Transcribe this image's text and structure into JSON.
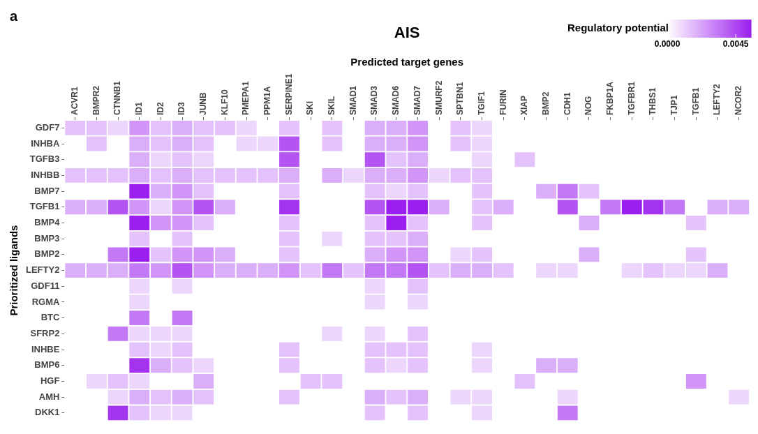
{
  "chart_data": {
    "type": "heatmap",
    "title": "AIS",
    "xlabel": "Predicted target genes",
    "ylabel": "Prioritized ligands",
    "legend_title": "Regulatory potential",
    "annotations": [
      "a"
    ],
    "categories": [
      "ACVR1",
      "BMPR2",
      "CTNNB1",
      "ID1",
      "ID2",
      "ID3",
      "JUNB",
      "KLF10",
      "PMEPA1",
      "PPM1A",
      "SERPINE1",
      "SKI",
      "SKIL",
      "SMAD1",
      "SMAD3",
      "SMAD6",
      "SMAD7",
      "SMURF2",
      "SPTBN1",
      "TGIF1",
      "FURIN",
      "XIAP",
      "BMP2",
      "CDH1",
      "NOG",
      "FKBP1A",
      "TGFBR1",
      "THBS1",
      "TJP1",
      "TGFB1",
      "LEFTY2",
      "NCOR2"
    ],
    "y_categories": [
      "GDF7",
      "INHBA",
      "TGFB3",
      "INHBB",
      "BMP7",
      "TGFB1",
      "BMP4",
      "BMP3",
      "BMP2",
      "LEFTY2",
      "GDF11",
      "RGMA",
      "BTC",
      "SFRP2",
      "INHBE",
      "BMP6",
      "HGF",
      "AMH",
      "DKK1"
    ],
    "clim": [
      0,
      0.0055
    ],
    "cticks": [
      {
        "value": 0,
        "label": "0.0000"
      },
      {
        "value": 0.0045,
        "label": "0.0045"
      }
    ],
    "cells": [
      [
        0.0015,
        0.0015,
        0.001,
        0.0026,
        0.0015,
        0.002,
        0.0015,
        0.0015,
        0.001,
        null,
        0.0015,
        null,
        0.0015,
        null,
        0.002,
        0.002,
        0.0026,
        null,
        0.0015,
        0.001,
        null,
        null,
        null,
        null,
        null,
        null,
        null,
        null,
        null,
        null,
        null,
        null
      ],
      [
        null,
        0.0015,
        null,
        0.002,
        0.0015,
        0.002,
        0.0015,
        null,
        0.001,
        0.001,
        0.0042,
        null,
        0.0015,
        null,
        0.002,
        0.002,
        0.0026,
        null,
        0.0015,
        0.001,
        null,
        null,
        null,
        null,
        null,
        null,
        null,
        null,
        null,
        null,
        null,
        null
      ],
      [
        null,
        null,
        null,
        0.002,
        0.001,
        0.0015,
        0.001,
        null,
        null,
        null,
        0.0042,
        null,
        null,
        null,
        0.0042,
        0.0015,
        0.002,
        null,
        null,
        0.001,
        null,
        0.0015,
        null,
        null,
        null,
        null,
        null,
        null,
        null,
        null,
        null,
        null
      ],
      [
        0.0015,
        0.0015,
        0.0015,
        0.002,
        0.0015,
        0.002,
        0.0015,
        0.0015,
        0.0015,
        0.0015,
        0.002,
        null,
        0.002,
        0.001,
        0.002,
        0.002,
        0.0026,
        0.001,
        0.0015,
        0.0015,
        null,
        null,
        null,
        null,
        null,
        null,
        null,
        null,
        null,
        null,
        null,
        null
      ],
      [
        null,
        null,
        null,
        0.0055,
        0.002,
        0.0026,
        0.0015,
        null,
        null,
        null,
        0.0015,
        null,
        null,
        null,
        0.0015,
        0.001,
        0.0015,
        null,
        null,
        0.0015,
        null,
        null,
        0.002,
        0.0033,
        0.0015,
        null,
        null,
        null,
        null,
        null,
        null,
        null
      ],
      [
        0.002,
        0.002,
        0.0042,
        0.0026,
        0.001,
        0.0026,
        0.0042,
        0.002,
        null,
        null,
        0.005,
        null,
        null,
        null,
        0.0042,
        0.0055,
        0.0055,
        0.002,
        null,
        0.0015,
        0.002,
        null,
        null,
        0.0042,
        null,
        0.0033,
        0.0055,
        0.005,
        0.0033,
        null,
        0.002,
        0.002
      ],
      [
        null,
        null,
        null,
        0.0055,
        0.0026,
        0.0026,
        0.0015,
        null,
        null,
        null,
        0.0015,
        null,
        null,
        null,
        0.0015,
        0.0055,
        0.0015,
        null,
        null,
        0.0015,
        null,
        null,
        null,
        null,
        0.002,
        null,
        null,
        null,
        null,
        0.0015,
        null,
        null
      ],
      [
        null,
        null,
        null,
        0.0015,
        null,
        0.0015,
        null,
        null,
        null,
        null,
        0.0015,
        null,
        0.001,
        null,
        0.0015,
        0.0015,
        0.002,
        null,
        null,
        null,
        null,
        null,
        null,
        null,
        null,
        null,
        null,
        null,
        null,
        null,
        null,
        null
      ],
      [
        null,
        null,
        0.0033,
        0.0055,
        0.0015,
        0.0026,
        0.0026,
        0.002,
        null,
        null,
        0.0015,
        null,
        null,
        null,
        0.002,
        0.0026,
        0.0026,
        null,
        0.001,
        0.0015,
        null,
        null,
        null,
        null,
        0.002,
        null,
        null,
        null,
        null,
        0.0015,
        null,
        null
      ],
      [
        0.002,
        0.002,
        0.002,
        0.0033,
        0.0026,
        0.0042,
        0.0026,
        0.002,
        0.002,
        0.002,
        0.0026,
        0.0015,
        0.0033,
        0.0015,
        0.0033,
        0.0033,
        0.0042,
        0.0015,
        0.002,
        0.002,
        0.0015,
        null,
        0.001,
        0.001,
        null,
        null,
        0.001,
        0.0015,
        0.001,
        0.001,
        0.002,
        null
      ],
      [
        null,
        null,
        null,
        0.001,
        null,
        0.001,
        null,
        null,
        null,
        null,
        null,
        null,
        null,
        null,
        0.001,
        null,
        0.0015,
        null,
        null,
        null,
        null,
        null,
        null,
        null,
        null,
        null,
        null,
        null,
        null,
        null,
        null,
        null
      ],
      [
        null,
        null,
        null,
        0.001,
        null,
        null,
        null,
        null,
        null,
        null,
        null,
        null,
        null,
        null,
        0.001,
        null,
        0.001,
        null,
        null,
        null,
        null,
        null,
        null,
        null,
        null,
        null,
        null,
        null,
        null,
        null,
        null,
        null
      ],
      [
        null,
        null,
        null,
        0.0033,
        null,
        0.0033,
        null,
        null,
        null,
        null,
        null,
        null,
        null,
        null,
        null,
        null,
        null,
        null,
        null,
        null,
        null,
        null,
        null,
        null,
        null,
        null,
        null,
        null,
        null,
        null,
        null,
        null
      ],
      [
        null,
        null,
        0.0033,
        0.001,
        0.001,
        0.001,
        null,
        null,
        null,
        null,
        null,
        null,
        0.001,
        null,
        0.001,
        null,
        0.0015,
        null,
        null,
        null,
        null,
        null,
        null,
        null,
        null,
        null,
        null,
        null,
        null,
        null,
        null,
        null
      ],
      [
        null,
        null,
        null,
        0.0015,
        0.001,
        0.0015,
        null,
        null,
        null,
        null,
        0.0015,
        null,
        null,
        null,
        0.0015,
        0.0015,
        0.0015,
        null,
        null,
        0.001,
        null,
        null,
        null,
        null,
        null,
        null,
        null,
        null,
        null,
        null,
        null,
        null
      ],
      [
        null,
        null,
        null,
        0.005,
        0.002,
        0.0015,
        0.001,
        null,
        null,
        null,
        0.0015,
        null,
        null,
        null,
        0.0015,
        0.001,
        0.0015,
        null,
        null,
        0.001,
        null,
        null,
        0.002,
        0.002,
        null,
        null,
        null,
        null,
        null,
        null,
        null,
        null
      ],
      [
        null,
        0.001,
        0.0015,
        0.001,
        null,
        null,
        0.002,
        null,
        null,
        null,
        null,
        0.0015,
        0.0015,
        null,
        null,
        null,
        null,
        null,
        null,
        null,
        null,
        0.0015,
        null,
        null,
        null,
        null,
        null,
        null,
        null,
        0.0026,
        null,
        null
      ],
      [
        null,
        null,
        0.001,
        0.002,
        0.0015,
        0.002,
        0.0015,
        null,
        null,
        null,
        0.0015,
        null,
        null,
        null,
        0.002,
        0.0015,
        0.002,
        null,
        0.001,
        0.001,
        null,
        null,
        null,
        0.001,
        null,
        null,
        null,
        null,
        null,
        null,
        null,
        0.001
      ],
      [
        null,
        null,
        0.005,
        0.0015,
        0.001,
        0.001,
        null,
        null,
        null,
        null,
        null,
        null,
        null,
        null,
        0.0015,
        null,
        0.0015,
        null,
        null,
        0.001,
        null,
        null,
        null,
        0.0033,
        null,
        null,
        null,
        null,
        null,
        null,
        null,
        null
      ]
    ]
  }
}
